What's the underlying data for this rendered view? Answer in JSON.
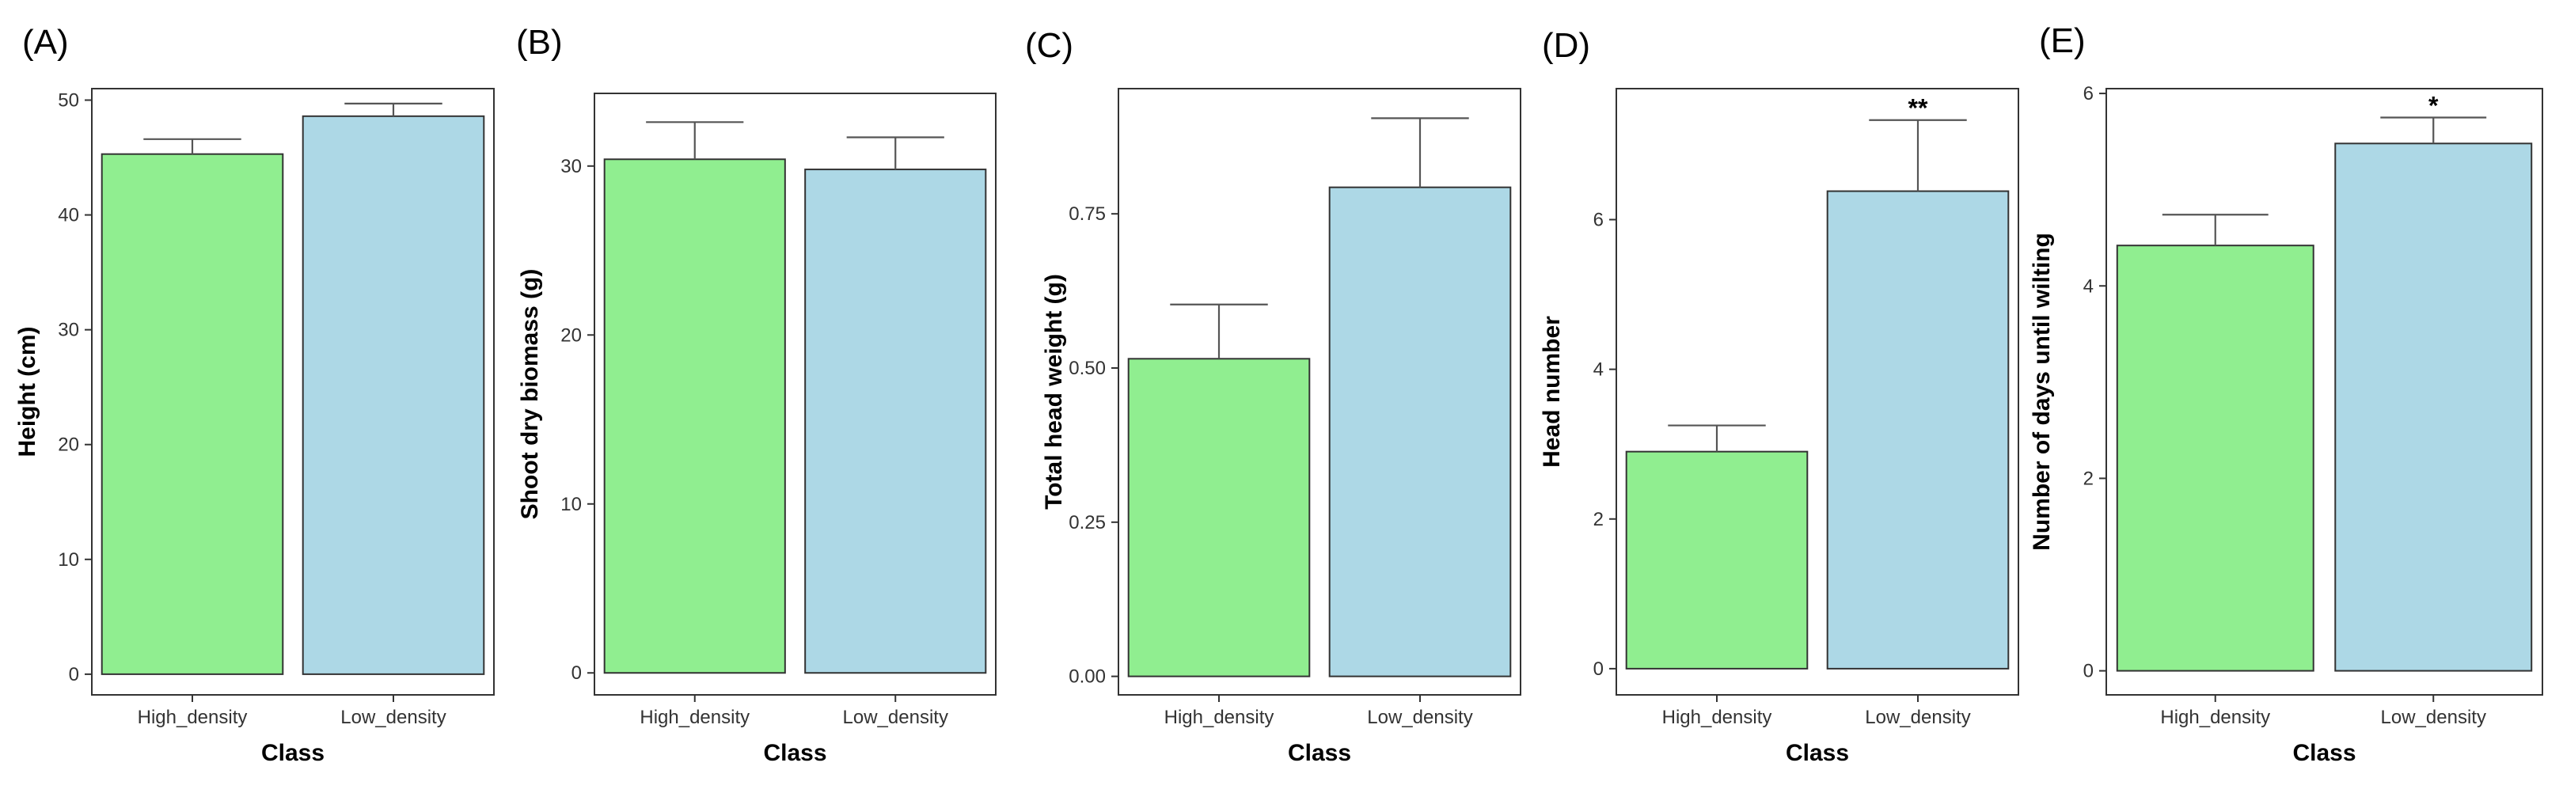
{
  "chart_data": [
    {
      "type": "bar",
      "panel_label": "(A)",
      "categories": [
        "High_density",
        "Low_density"
      ],
      "values": [
        45.3,
        48.6
      ],
      "errors": [
        1.3,
        1.1
      ],
      "significance": [
        "",
        ""
      ],
      "xlabel": "Class",
      "ylabel": "Height (cm)",
      "ylim": [
        -1.8,
        51
      ],
      "yticks": [
        0,
        10,
        20,
        30,
        40,
        50
      ],
      "ytick_labels": [
        "0",
        "10",
        "20",
        "30",
        "40",
        "50"
      ],
      "grid": false,
      "colors": [
        "#90ee90",
        "#add8e6"
      ]
    },
    {
      "type": "bar",
      "panel_label": "(B)",
      "categories": [
        "High_density",
        "Low_density"
      ],
      "values": [
        30.4,
        29.8
      ],
      "errors": [
        2.2,
        1.9
      ],
      "significance": [
        "",
        ""
      ],
      "xlabel": "Class",
      "ylabel": "Shoot dry biomass (g)",
      "ylim": [
        -1.3,
        34.3
      ],
      "yticks": [
        0,
        10,
        20,
        30
      ],
      "ytick_labels": [
        "0",
        "10",
        "20",
        "30"
      ],
      "grid": false,
      "colors": [
        "#90ee90",
        "#add8e6"
      ]
    },
    {
      "type": "bar",
      "panel_label": "(C)",
      "categories": [
        "High_density",
        "Low_density"
      ],
      "values": [
        0.515,
        0.793
      ],
      "errors": [
        0.088,
        0.112
      ],
      "significance": [
        "",
        ""
      ],
      "xlabel": "Class",
      "ylabel": "Total head weight (g)",
      "ylim": [
        -0.03,
        0.953
      ],
      "yticks": [
        0,
        0.25,
        0.5,
        0.75
      ],
      "ytick_labels": [
        "0.00",
        "0.25",
        "0.50",
        "0.75"
      ],
      "grid": false,
      "colors": [
        "#90ee90",
        "#add8e6"
      ]
    },
    {
      "type": "bar",
      "panel_label": "(D)",
      "categories": [
        "High_density",
        "Low_density"
      ],
      "values": [
        2.9,
        6.38
      ],
      "errors": [
        0.35,
        0.95
      ],
      "significance": [
        "",
        "**"
      ],
      "xlabel": "Class",
      "ylabel": "Head number",
      "ylim": [
        -0.35,
        7.75
      ],
      "yticks": [
        0,
        2,
        4,
        6
      ],
      "ytick_labels": [
        "0",
        "2",
        "4",
        "6"
      ],
      "grid": false,
      "colors": [
        "#90ee90",
        "#add8e6"
      ]
    },
    {
      "type": "bar",
      "panel_label": "(E)",
      "categories": [
        "High_density",
        "Low_density"
      ],
      "values": [
        4.42,
        5.48
      ],
      "errors": [
        0.32,
        0.27
      ],
      "significance": [
        "",
        "*"
      ],
      "xlabel": "Class",
      "ylabel": "Number of days until wilting",
      "ylim": [
        -0.25,
        6.05
      ],
      "yticks": [
        0,
        2,
        4,
        6
      ],
      "ytick_labels": [
        "0",
        "2",
        "4",
        "6"
      ],
      "grid": false,
      "colors": [
        "#90ee90",
        "#add8e6"
      ]
    }
  ]
}
